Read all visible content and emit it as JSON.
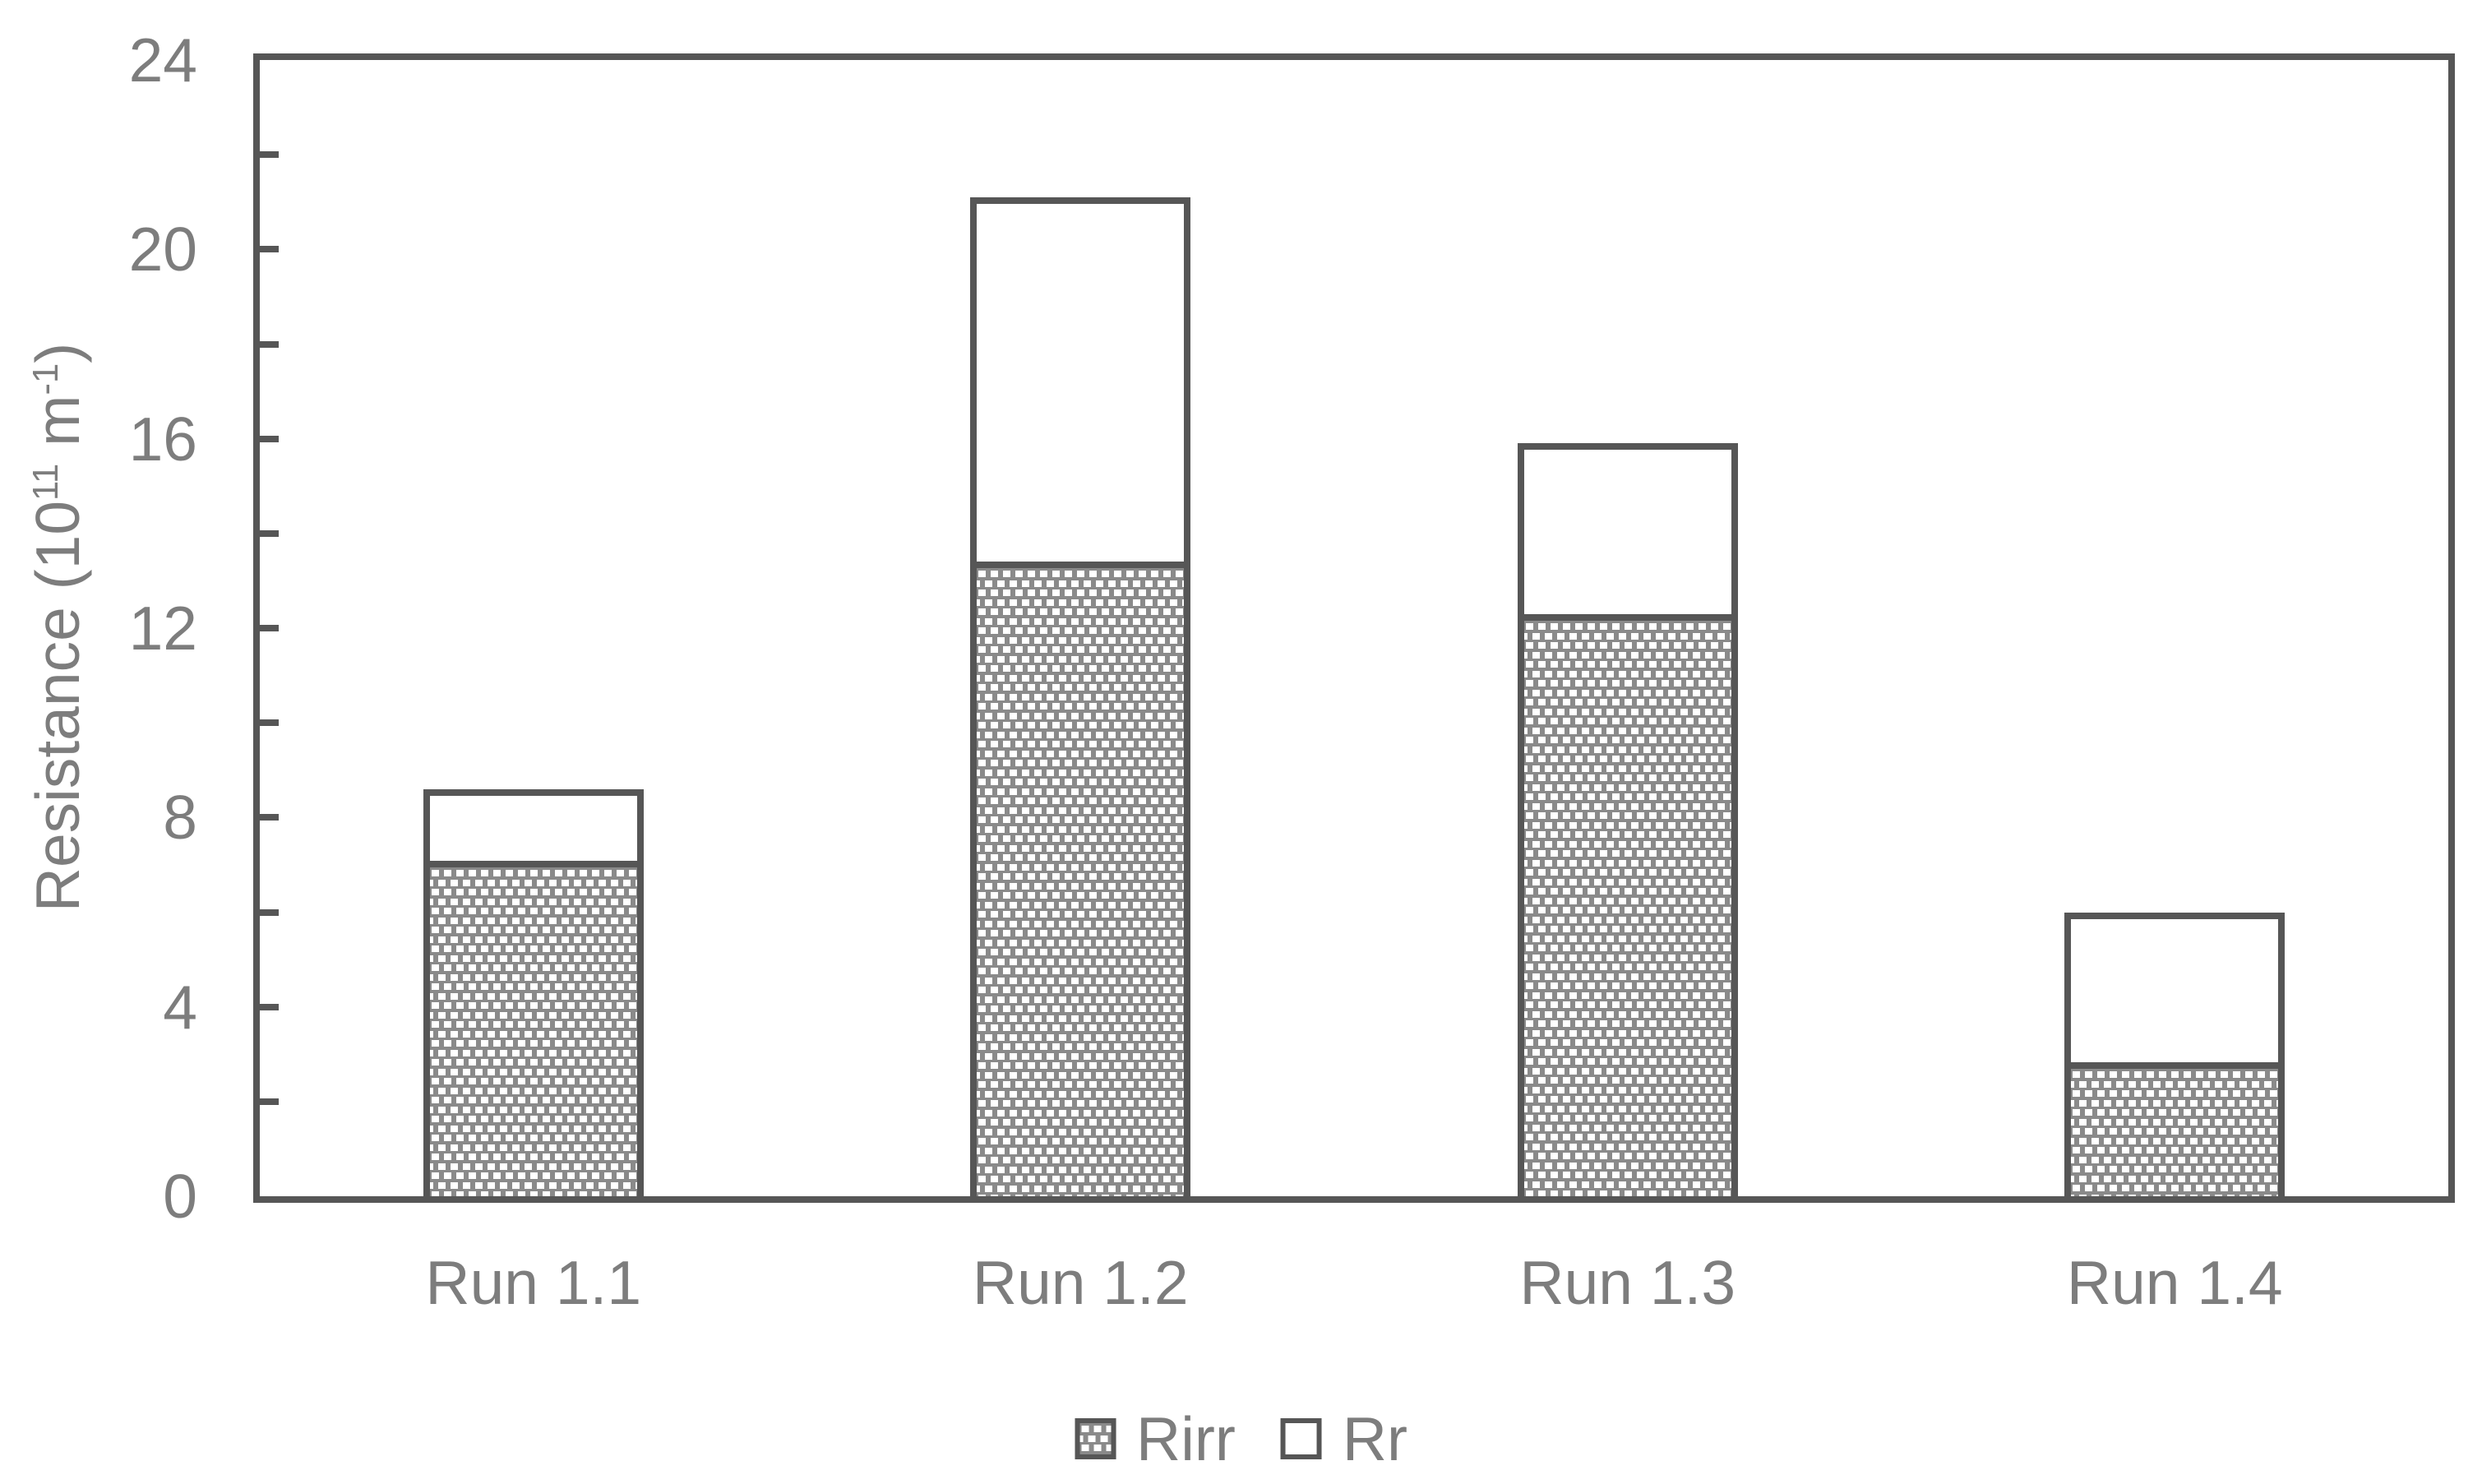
{
  "chart_data": {
    "type": "bar",
    "stacked": true,
    "categories": [
      "Run 1.1",
      "Run 1.2",
      "Run 1.3",
      "Run 1.4"
    ],
    "series": [
      {
        "name": "Rirr",
        "style": "gray-dotted-pattern",
        "values": [
          7.2,
          13.5,
          12.4,
          2.9
        ]
      },
      {
        "name": "Rr",
        "style": "white",
        "values": [
          1.4,
          7.6,
          3.5,
          3.1
        ]
      }
    ],
    "stack_totals": [
      8.6,
      21.1,
      15.9,
      6.0
    ],
    "title": "",
    "xlabel": "",
    "ylabel": "Resistance (10¹¹ m⁻¹)",
    "ylabel_parts": {
      "prefix": "Resistance (10",
      "sup1": "11",
      "mid": " m",
      "sup2": "-1",
      "suffix": ")"
    },
    "ylim": [
      0,
      24
    ],
    "ytick_labels": [
      "0",
      "4",
      "8",
      "12",
      "16",
      "20",
      "24"
    ],
    "ytick_step": 4,
    "minor_tick_step": 2,
    "grid": false,
    "legend_position": "bottom",
    "colors": {
      "axis": "#565656",
      "label_text": "#7d7d7d",
      "rirr_pattern_base": "#8a8a8a",
      "rirr_pattern_dot": "#ffffff",
      "rr_fill": "#ffffff"
    }
  },
  "legend": [
    {
      "label": "Rirr"
    },
    {
      "label": "Rr"
    }
  ]
}
